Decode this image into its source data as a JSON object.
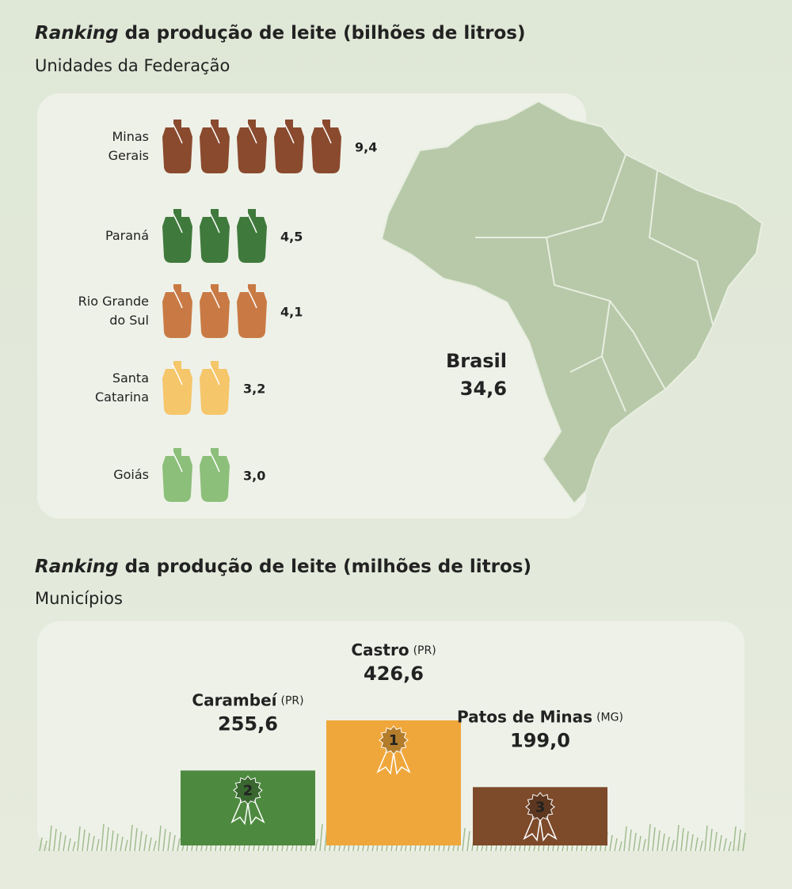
{
  "chart_data": [
    {
      "type": "pictograph",
      "title_emphasis": "Ranking",
      "title": "da produção de leite (bilhões de litros)",
      "subtitle": "Unidades da Federação",
      "categories": [
        "Minas Gerais",
        "Paraná",
        "Rio Grande do Sul",
        "Santa Catarina",
        "Goiás"
      ],
      "values": [
        9.4,
        4.5,
        4.1,
        3.2,
        3.0
      ],
      "value_labels": [
        "9,4",
        "4,5",
        "4,1",
        "3,2",
        "3,0"
      ],
      "colors": [
        "#8a4a2e",
        "#3f7a3c",
        "#c97a44",
        "#f5c66a",
        "#8cbf7a"
      ],
      "total_label": "Brasil",
      "total": 34.6,
      "total_value_label": "34,6"
    },
    {
      "type": "bar",
      "title_emphasis": "Ranking",
      "title": "da produção de leite (milhões de litros)",
      "subtitle": "Municípios",
      "categories": [
        "Carambeí",
        "Castro",
        "Patos de Minas"
      ],
      "qualifiers": [
        "(PR)",
        "(PR)",
        "(MG)"
      ],
      "values": [
        255.6,
        426.6,
        199.0
      ],
      "value_labels": [
        "255,6",
        "426,6",
        "199,0"
      ],
      "ranks": [
        2,
        1,
        3
      ],
      "colors": [
        "#4d8a3f",
        "#efa73b",
        "#7d4a2a"
      ]
    }
  ]
}
